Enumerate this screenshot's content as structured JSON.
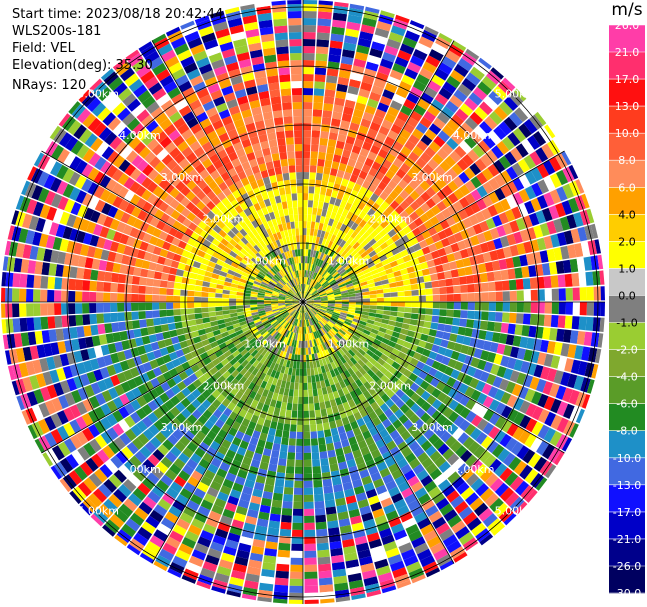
{
  "header": {
    "start_time": "Start time: 2023/08/18 20:42:44",
    "instrument": "WLS200s-181",
    "field": "Field: VEL",
    "elevation": "Elevation(deg): 35.30",
    "nrays": "NRays: 120"
  },
  "colorbar": {
    "unit": "m/s",
    "ticks": [
      "26.0",
      "21.0",
      "17.0",
      "13.0",
      "10.0",
      "8.0",
      "6.0",
      "4.0",
      "2.0",
      "1.0",
      "0.0",
      "-1.0",
      "-2.0",
      "-4.0",
      "-6.0",
      "-8.0",
      "-10.0",
      "-13.0",
      "-17.0",
      "-21.0",
      "-26.0",
      "-30.0"
    ],
    "colors": [
      "#ff3da8",
      "#ff2f6e",
      "#ff1010",
      "#ff3c1e",
      "#ff5f38",
      "#ff8c5a",
      "#ffa000",
      "#ffcd00",
      "#ffff00",
      "#c8c8c8",
      "#7f7f7f",
      "#9acd32",
      "#7fa82e",
      "#5a9c28",
      "#228b22",
      "#1e90c8",
      "#4169e1",
      "#1010ff",
      "#0000c8",
      "#00008b",
      "#000060"
    ]
  },
  "rings": {
    "labels": [
      "1.00km",
      "2.00km",
      "3.00km",
      "4.00km",
      "5.00km"
    ]
  },
  "display": {
    "nrays": 120,
    "near_colors": [
      "#ffff00",
      "#7f7f7f",
      "#228b22",
      "#5a9c28",
      "#ffcd00"
    ],
    "mid_north_colors": [
      "#ff8c5a",
      "#ff5f38",
      "#ffa000",
      "#ff3c1e"
    ],
    "mid_south_colors": [
      "#228b22",
      "#1e90c8",
      "#4169e1",
      "#5a9c28"
    ],
    "noise_colors": [
      "#ff3da8",
      "#ff2f6e",
      "#ff1010",
      "#ffa000",
      "#ffff00",
      "#228b22",
      "#1e90c8",
      "#0000c8",
      "#00008b",
      "#000060",
      "#9acd32",
      "#7f7f7f",
      "#ffffff",
      "#ff8c5a",
      "#4169e1",
      "#1010ff"
    ]
  }
}
